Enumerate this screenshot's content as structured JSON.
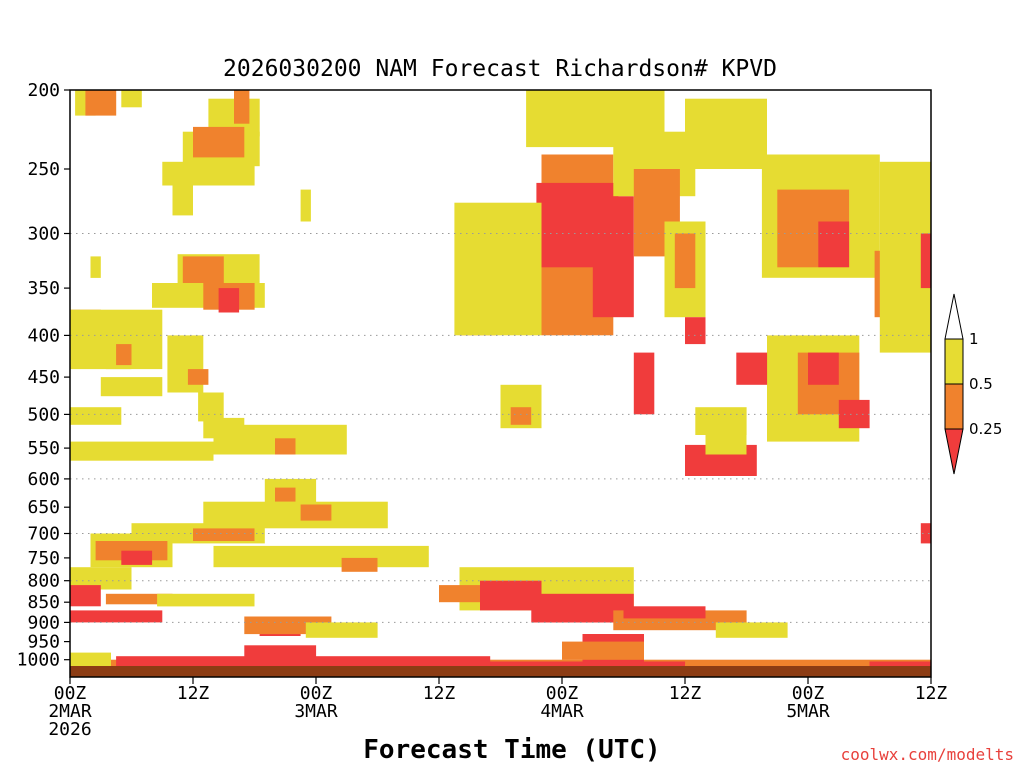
{
  "chart_data": {
    "type": "heatmap",
    "title": "2026030200 NAM Forecast Richardson# KPVD",
    "xlabel": "Forecast Time (UTC)",
    "ylabel": "",
    "credit": "coolwx.com/modelts",
    "x_unit": "forecast hour",
    "xlim": [
      0,
      84
    ],
    "ylim": [
      1050,
      200
    ],
    "y_scale": "log",
    "x_ticks": [
      {
        "hour": 0,
        "label": "00Z",
        "date": "2MAR",
        "year": "2026"
      },
      {
        "hour": 12,
        "label": "12Z",
        "date": "",
        "year": ""
      },
      {
        "hour": 24,
        "label": "00Z",
        "date": "3MAR",
        "year": ""
      },
      {
        "hour": 36,
        "label": "12Z",
        "date": "",
        "year": ""
      },
      {
        "hour": 48,
        "label": "00Z",
        "date": "4MAR",
        "year": ""
      },
      {
        "hour": 60,
        "label": "12Z",
        "date": "",
        "year": ""
      },
      {
        "hour": 72,
        "label": "00Z",
        "date": "5MAR",
        "year": ""
      },
      {
        "hour": 84,
        "label": "12Z",
        "date": "",
        "year": ""
      }
    ],
    "y_ticks": [
      200,
      250,
      300,
      350,
      400,
      450,
      500,
      550,
      600,
      650,
      700,
      750,
      800,
      850,
      900,
      950,
      1000
    ],
    "gridlines": [
      300,
      400,
      500,
      600,
      700,
      800,
      900
    ],
    "legend": {
      "placement": "right",
      "levels": [
        {
          "label": "1",
          "color": "#ffffff",
          "range": "> 1"
        },
        {
          "label": "0.5",
          "color": "#e6dc32",
          "range": "0.5 - 1"
        },
        {
          "label": "0.25",
          "color": "#f0822d",
          "range": "0.25 - 0.5"
        },
        {
          "label": "",
          "color": "#f03c3c",
          "range": "< 0.25"
        }
      ]
    },
    "colors": {
      "yellow": "#e6dc32",
      "orange": "#f0822d",
      "red": "#f03c3c",
      "ground": "#8c3c14"
    },
    "cells": [
      {
        "t": 0.5,
        "t2": 2.5,
        "p1": 200,
        "p2": 215,
        "c": "y"
      },
      {
        "t": 1.5,
        "t2": 4.5,
        "p1": 200,
        "p2": 215,
        "c": "o"
      },
      {
        "t": 5,
        "t2": 7,
        "p1": 200,
        "p2": 210,
        "c": "y"
      },
      {
        "t": 13.5,
        "t2": 18.5,
        "p1": 205,
        "p2": 228,
        "c": "y"
      },
      {
        "t": 11,
        "t2": 18.5,
        "p1": 225,
        "p2": 248,
        "c": "y"
      },
      {
        "t": 12,
        "t2": 17,
        "p1": 222,
        "p2": 242,
        "c": "o"
      },
      {
        "t": 16,
        "t2": 17.5,
        "p1": 200,
        "p2": 220,
        "c": "o"
      },
      {
        "t": 9,
        "t2": 18,
        "p1": 245,
        "p2": 262,
        "c": "y"
      },
      {
        "t": 10,
        "t2": 12,
        "p1": 260,
        "p2": 285,
        "c": "y"
      },
      {
        "t": 22.5,
        "t2": 23.5,
        "p1": 265,
        "p2": 290,
        "c": "y"
      },
      {
        "t": 2,
        "t2": 3,
        "p1": 320,
        "p2": 340,
        "c": "y"
      },
      {
        "t": 10.5,
        "t2": 18.5,
        "p1": 318,
        "p2": 345,
        "c": "y"
      },
      {
        "t": 11,
        "t2": 15,
        "p1": 320,
        "p2": 345,
        "c": "o"
      },
      {
        "t": 8,
        "t2": 19,
        "p1": 345,
        "p2": 370,
        "c": "y"
      },
      {
        "t": 13,
        "t2": 18,
        "p1": 345,
        "p2": 372,
        "c": "o"
      },
      {
        "t": 14.5,
        "t2": 16.5,
        "p1": 350,
        "p2": 375,
        "c": "r"
      },
      {
        "t": 0,
        "t2": 3,
        "p1": 372,
        "p2": 408,
        "c": "o"
      },
      {
        "t": 0,
        "t2": 9,
        "p1": 372,
        "p2": 440,
        "c": "y"
      },
      {
        "t": 3.5,
        "t2": 6,
        "p1": 400,
        "p2": 440,
        "c": "y"
      },
      {
        "t": 4.5,
        "t2": 6,
        "p1": 410,
        "p2": 435,
        "c": "o"
      },
      {
        "t": 9.5,
        "t2": 13,
        "p1": 400,
        "p2": 470,
        "c": "y"
      },
      {
        "t": 11.5,
        "t2": 13.5,
        "p1": 440,
        "p2": 460,
        "c": "o"
      },
      {
        "t": 3,
        "t2": 9,
        "p1": 450,
        "p2": 475,
        "c": "y"
      },
      {
        "t": 12.5,
        "t2": 15,
        "p1": 470,
        "p2": 510,
        "c": "y"
      },
      {
        "t": 0,
        "t2": 5,
        "p1": 490,
        "p2": 515,
        "c": "y"
      },
      {
        "t": 13,
        "t2": 17,
        "p1": 505,
        "p2": 535,
        "c": "y"
      },
      {
        "t": 14,
        "t2": 27,
        "p1": 515,
        "p2": 560,
        "c": "y"
      },
      {
        "t": 20,
        "t2": 22,
        "p1": 535,
        "p2": 560,
        "c": "o"
      },
      {
        "t": 0,
        "t2": 14,
        "p1": 540,
        "p2": 570,
        "c": "y"
      },
      {
        "t": 19,
        "t2": 24,
        "p1": 600,
        "p2": 650,
        "c": "y"
      },
      {
        "t": 20,
        "t2": 22,
        "p1": 615,
        "p2": 640,
        "c": "o"
      },
      {
        "t": 13,
        "t2": 31,
        "p1": 640,
        "p2": 690,
        "c": "y"
      },
      {
        "t": 22.5,
        "t2": 25.5,
        "p1": 645,
        "p2": 675,
        "c": "o"
      },
      {
        "t": 6,
        "t2": 19,
        "p1": 680,
        "p2": 720,
        "c": "y"
      },
      {
        "t": 12,
        "t2": 18,
        "p1": 690,
        "p2": 715,
        "c": "o"
      },
      {
        "t": 2,
        "t2": 10,
        "p1": 700,
        "p2": 770,
        "c": "y"
      },
      {
        "t": 2.5,
        "t2": 9.5,
        "p1": 715,
        "p2": 755,
        "c": "o"
      },
      {
        "t": 5,
        "t2": 8,
        "p1": 735,
        "p2": 765,
        "c": "r"
      },
      {
        "t": 14,
        "t2": 35,
        "p1": 725,
        "p2": 770,
        "c": "y"
      },
      {
        "t": 26.5,
        "t2": 30,
        "p1": 750,
        "p2": 780,
        "c": "o"
      },
      {
        "t": 0,
        "t2": 6,
        "p1": 770,
        "p2": 820,
        "c": "y"
      },
      {
        "t": 0,
        "t2": 3,
        "p1": 810,
        "p2": 860,
        "c": "r"
      },
      {
        "t": 3.5,
        "t2": 10,
        "p1": 830,
        "p2": 855,
        "c": "o"
      },
      {
        "t": 8.5,
        "t2": 18,
        "p1": 830,
        "p2": 860,
        "c": "y"
      },
      {
        "t": 0,
        "t2": 9,
        "p1": 870,
        "p2": 900,
        "c": "r"
      },
      {
        "t": 18.5,
        "t2": 22.5,
        "p1": 890,
        "p2": 935,
        "c": "r"
      },
      {
        "t": 17,
        "t2": 25.5,
        "p1": 885,
        "p2": 930,
        "c": "o"
      },
      {
        "t": 23,
        "t2": 30,
        "p1": 900,
        "p2": 940,
        "c": "y"
      },
      {
        "t": 0,
        "t2": 4,
        "p1": 980,
        "p2": 1040,
        "c": "y"
      },
      {
        "t": 4,
        "t2": 84,
        "p1": 1000,
        "p2": 1040,
        "c": "o"
      },
      {
        "t": 4.5,
        "t2": 41,
        "p1": 990,
        "p2": 1045,
        "c": "r"
      },
      {
        "t": 33,
        "t2": 60,
        "p1": 1005,
        "p2": 1048,
        "c": "r"
      },
      {
        "t": 60,
        "t2": 78,
        "p1": 1012,
        "p2": 1040,
        "c": "o"
      },
      {
        "t": 78,
        "t2": 84,
        "p1": 1005,
        "p2": 1035,
        "c": "r"
      },
      {
        "t": 17,
        "t2": 24,
        "p1": 960,
        "p2": 1010,
        "c": "r"
      },
      {
        "t": 50,
        "t2": 56,
        "p1": 930,
        "p2": 1010,
        "c": "r"
      },
      {
        "t": 48,
        "t2": 56,
        "p1": 950,
        "p2": 1000,
        "c": "o"
      },
      {
        "t": 44.5,
        "t2": 58,
        "p1": 200,
        "p2": 235,
        "c": "y"
      },
      {
        "t": 46,
        "t2": 53,
        "p1": 240,
        "p2": 400,
        "c": "o"
      },
      {
        "t": 45.5,
        "t2": 53.5,
        "p1": 260,
        "p2": 330,
        "c": "r"
      },
      {
        "t": 51,
        "t2": 55,
        "p1": 270,
        "p2": 380,
        "c": "r"
      },
      {
        "t": 38,
        "t2": 41.5,
        "p1": 290,
        "p2": 400,
        "c": "o"
      },
      {
        "t": 41,
        "t2": 45,
        "p1": 320,
        "p2": 360,
        "c": "r"
      },
      {
        "t": 37.5,
        "t2": 46,
        "p1": 275,
        "p2": 400,
        "c": "y"
      },
      {
        "t": 53,
        "t2": 61,
        "p1": 225,
        "p2": 270,
        "c": "y"
      },
      {
        "t": 55,
        "t2": 59.5,
        "p1": 250,
        "p2": 320,
        "c": "o"
      },
      {
        "t": 61,
        "t2": 66.5,
        "p1": 215,
        "p2": 240,
        "c": "o"
      },
      {
        "t": 60,
        "t2": 68,
        "p1": 205,
        "p2": 250,
        "c": "y"
      },
      {
        "t": 67.5,
        "t2": 79,
        "p1": 240,
        "p2": 340,
        "c": "y"
      },
      {
        "t": 69,
        "t2": 76,
        "p1": 265,
        "p2": 330,
        "c": "o"
      },
      {
        "t": 73,
        "t2": 76,
        "p1": 290,
        "p2": 330,
        "c": "r"
      },
      {
        "t": 78.5,
        "t2": 84,
        "p1": 315,
        "p2": 380,
        "c": "o"
      },
      {
        "t": 79,
        "t2": 84,
        "p1": 245,
        "p2": 420,
        "c": "y"
      },
      {
        "t": 83,
        "t2": 84,
        "p1": 300,
        "p2": 350,
        "c": "r"
      },
      {
        "t": 58,
        "t2": 62,
        "p1": 290,
        "p2": 380,
        "c": "y"
      },
      {
        "t": 59,
        "t2": 61,
        "p1": 300,
        "p2": 350,
        "c": "o"
      },
      {
        "t": 60,
        "t2": 62,
        "p1": 380,
        "p2": 410,
        "c": "r"
      },
      {
        "t": 68,
        "t2": 77,
        "p1": 400,
        "p2": 540,
        "c": "y"
      },
      {
        "t": 71,
        "t2": 77,
        "p1": 420,
        "p2": 500,
        "c": "o"
      },
      {
        "t": 72,
        "t2": 75,
        "p1": 420,
        "p2": 460,
        "c": "r"
      },
      {
        "t": 75,
        "t2": 78,
        "p1": 480,
        "p2": 520,
        "c": "r"
      },
      {
        "t": 65,
        "t2": 68,
        "p1": 420,
        "p2": 460,
        "c": "r"
      },
      {
        "t": 61,
        "t2": 66,
        "p1": 490,
        "p2": 530,
        "c": "y"
      },
      {
        "t": 60,
        "t2": 67,
        "p1": 545,
        "p2": 595,
        "c": "r"
      },
      {
        "t": 62,
        "t2": 66,
        "p1": 530,
        "p2": 560,
        "c": "y"
      },
      {
        "t": 42,
        "t2": 46,
        "p1": 460,
        "p2": 520,
        "c": "y"
      },
      {
        "t": 43,
        "t2": 45,
        "p1": 490,
        "p2": 515,
        "c": "o"
      },
      {
        "t": 55,
        "t2": 57,
        "p1": 420,
        "p2": 500,
        "c": "r"
      },
      {
        "t": 38,
        "t2": 55,
        "p1": 770,
        "p2": 870,
        "c": "y"
      },
      {
        "t": 40,
        "t2": 46,
        "p1": 800,
        "p2": 870,
        "c": "r"
      },
      {
        "t": 45,
        "t2": 55,
        "p1": 830,
        "p2": 900,
        "c": "r"
      },
      {
        "t": 53,
        "t2": 66,
        "p1": 870,
        "p2": 920,
        "c": "o"
      },
      {
        "t": 54,
        "t2": 62,
        "p1": 860,
        "p2": 890,
        "c": "r"
      },
      {
        "t": 36,
        "t2": 40,
        "p1": 810,
        "p2": 850,
        "c": "o"
      },
      {
        "t": 63,
        "t2": 70,
        "p1": 900,
        "p2": 940,
        "c": "y"
      },
      {
        "t": 83,
        "t2": 84,
        "p1": 680,
        "p2": 720,
        "c": "r"
      }
    ]
  }
}
